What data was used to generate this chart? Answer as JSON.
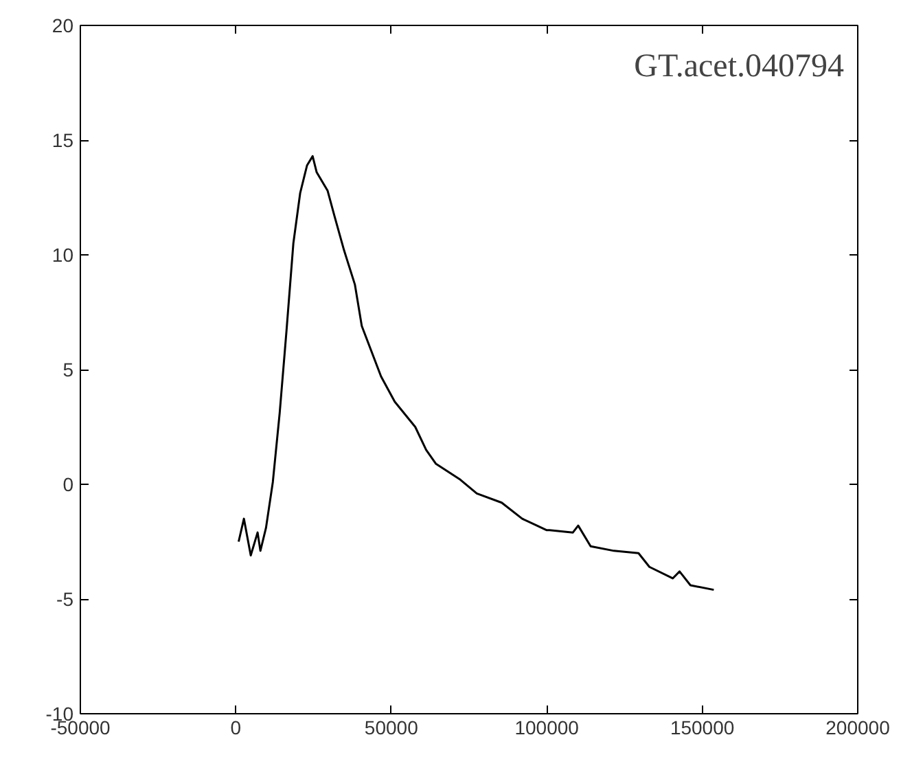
{
  "chart_data": {
    "type": "line",
    "annotations": [
      "GT.acet.040794"
    ],
    "x": [
      900,
      2600,
      4800,
      7000,
      7900,
      9700,
      11900,
      14100,
      16300,
      18500,
      20700,
      22900,
      24700,
      26000,
      29500,
      31700,
      34800,
      38300,
      40500,
      46700,
      51100,
      57700,
      61200,
      64300,
      72200,
      77500,
      85500,
      92100,
      100000,
      100900,
      108400,
      110100,
      114100,
      121600,
      129500,
      133000,
      140500,
      142700,
      146200,
      153700
    ],
    "series": [
      {
        "color": "#000000",
        "values": [
          -2.5,
          -1.5,
          -3.1,
          -2.1,
          -2.9,
          -1.9,
          0.1,
          3.1,
          6.7,
          10.5,
          12.7,
          13.9,
          14.3,
          13.6,
          12.8,
          11.7,
          10.2,
          8.7,
          6.9,
          4.7,
          3.6,
          2.5,
          1.5,
          0.9,
          0.2,
          -0.4,
          -0.8,
          -1.5,
          -2.0,
          -2.0,
          -2.1,
          -1.8,
          -2.7,
          -2.9,
          -3.0,
          -3.6,
          -4.1,
          -3.8,
          -4.4,
          -4.6
        ]
      }
    ],
    "xlim": [
      -50000,
      200000
    ],
    "ylim": [
      -10,
      20
    ],
    "xticks": [
      -50000,
      0,
      50000,
      100000,
      150000,
      200000
    ],
    "yticks": [
      -10,
      -5,
      0,
      5,
      10,
      15,
      20
    ],
    "grid": false,
    "line_style": "solid",
    "marker": "none"
  }
}
